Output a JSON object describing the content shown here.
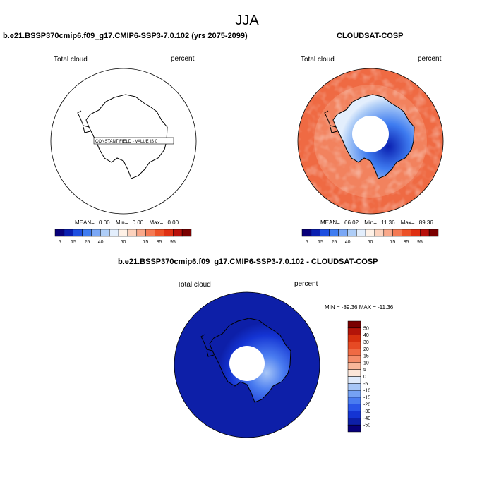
{
  "figure": {
    "title": "JJA"
  },
  "colors": {
    "seq_palette": [
      "#08007a",
      "#0a1fb0",
      "#1e4fe0",
      "#3f7cf0",
      "#7aa7f5",
      "#aecdf7",
      "#e3eefc",
      "#fff1e6",
      "#fcd2bd",
      "#f9a88a",
      "#f47a54",
      "#ec5228",
      "#df3012",
      "#b8100a",
      "#7a0000"
    ],
    "diff_palette": [
      "#08007a",
      "#0d1fa8",
      "#1434d3",
      "#2a55e8",
      "#4a7cf0",
      "#75a2f4",
      "#a7c6f7",
      "#dfeafb",
      "#fde6d8",
      "#f8b79a",
      "#f48d6a",
      "#ef6a43",
      "#e64a24",
      "#d6300f",
      "#b31409",
      "#7a0000"
    ]
  },
  "chart_data": [
    {
      "type": "heatmap",
      "panel": "left",
      "title": "b.e21.BSSP370cmip6.f09_g17.CMIP6-SSP3-7.0.102 (yrs 2075-2099)",
      "variable": "Total cloud",
      "units": "percent",
      "projection": "south-polar-stereographic",
      "annotation": "CONSTANT FIELD - VALUE IS 0",
      "stats": {
        "mean_label": "MEAN=",
        "mean": "0.00",
        "min_label": "Min=",
        "min": "0.00",
        "max_label": "Max=",
        "max": "0.00"
      },
      "field": {
        "constant": 0
      },
      "colorbar": {
        "orientation": "horizontal",
        "bins": 15,
        "range": [
          0,
          100
        ],
        "tick_labels": [
          "5",
          "15",
          "25",
          "40",
          "60",
          "75",
          "85",
          "95"
        ]
      }
    },
    {
      "type": "heatmap",
      "panel": "right",
      "title": "CLOUDSAT-COSP",
      "variable": "Total cloud",
      "units": "percent",
      "projection": "south-polar-stereographic",
      "stats": {
        "mean_label": "MEAN=",
        "mean": "66.02",
        "min_label": "Min=",
        "min": "11.36",
        "max_label": "Max=",
        "max": "89.36"
      },
      "field": {
        "ocean": 78,
        "antarctica_interior": 22,
        "east_antarctica_min": 11.36,
        "pole_hole": "missing"
      },
      "colorbar": {
        "orientation": "horizontal",
        "bins": 15,
        "range": [
          0,
          100
        ],
        "tick_labels": [
          "5",
          "15",
          "25",
          "40",
          "60",
          "75",
          "85",
          "95"
        ]
      }
    },
    {
      "type": "heatmap",
      "panel": "bottom",
      "title": "b.e21.BSSP370cmip6.f09_g17.CMIP6-SSP3-7.0.102 - CLOUDSAT-COSP",
      "variable": "Total cloud",
      "units": "percent",
      "projection": "south-polar-stereographic",
      "stats_text": "MIN = -89.36 MAX = -11.36",
      "field": {
        "ocean": -75,
        "antarctica_interior": -25,
        "east_antarctica_max": -11.36,
        "pole_hole": "missing"
      },
      "colorbar": {
        "orientation": "vertical",
        "bins": 16,
        "tick_labels": [
          "50",
          "40",
          "30",
          "20",
          "15",
          "10",
          "5",
          "0",
          "-5",
          "-10",
          "-15",
          "-20",
          "-30",
          "-40",
          "-50"
        ]
      }
    }
  ]
}
